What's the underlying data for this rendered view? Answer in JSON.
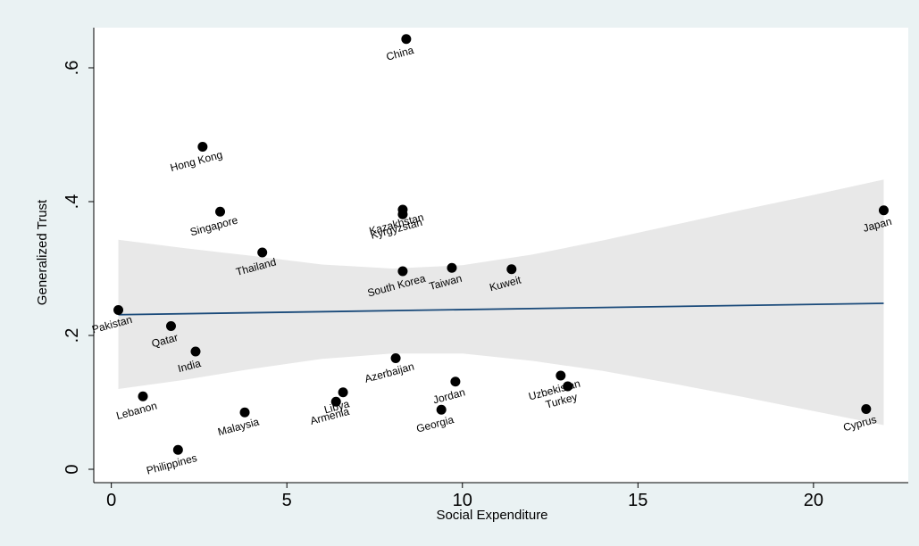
{
  "chart_data": {
    "type": "scatter",
    "xlabel": "Social Expenditure",
    "ylabel": "Generalized Trust",
    "xlim": [
      -0.5,
      22.7
    ],
    "ylim": [
      -0.02,
      0.66
    ],
    "x_ticks": [
      0,
      5,
      10,
      15,
      20
    ],
    "x_tick_labels": [
      "0",
      "5",
      "10",
      "15",
      "20"
    ],
    "y_ticks": [
      0,
      0.2,
      0.4,
      0.6
    ],
    "y_tick_labels": [
      "0",
      ".2",
      ".4",
      ".6"
    ],
    "grid": false,
    "points": [
      {
        "label": "China",
        "x": 8.4,
        "y": 0.643
      },
      {
        "label": "Hong Kong",
        "x": 2.6,
        "y": 0.482
      },
      {
        "label": "Singapore",
        "x": 3.1,
        "y": 0.385
      },
      {
        "label": "Thailand",
        "x": 4.3,
        "y": 0.324
      },
      {
        "label": "Pakistan",
        "x": 0.2,
        "y": 0.238
      },
      {
        "label": "Qatar",
        "x": 1.7,
        "y": 0.214
      },
      {
        "label": "India",
        "x": 2.4,
        "y": 0.176
      },
      {
        "label": "Lebanon",
        "x": 0.9,
        "y": 0.109
      },
      {
        "label": "Malaysia",
        "x": 3.8,
        "y": 0.085
      },
      {
        "label": "Philippines",
        "x": 1.9,
        "y": 0.029
      },
      {
        "label": "Kazakhstan",
        "x": 8.3,
        "y": 0.388
      },
      {
        "label": "Kyrgyzstan",
        "x": 8.3,
        "y": 0.381
      },
      {
        "label": "South Korea",
        "x": 8.3,
        "y": 0.296
      },
      {
        "label": "Taiwan",
        "x": 9.7,
        "y": 0.301
      },
      {
        "label": "Kuweit",
        "x": 11.4,
        "y": 0.299
      },
      {
        "label": "Azerbaijan",
        "x": 8.1,
        "y": 0.166
      },
      {
        "label": "Libya",
        "x": 6.6,
        "y": 0.115
      },
      {
        "label": "Armenia",
        "x": 6.4,
        "y": 0.101
      },
      {
        "label": "Jordan",
        "x": 9.8,
        "y": 0.131
      },
      {
        "label": "Georgia",
        "x": 9.4,
        "y": 0.089
      },
      {
        "label": "Uzbekistan",
        "x": 12.8,
        "y": 0.14
      },
      {
        "label": "Turkey",
        "x": 13.0,
        "y": 0.124
      },
      {
        "label": "Japan",
        "x": 22.0,
        "y": 0.387
      },
      {
        "label": "Cyprus",
        "x": 21.5,
        "y": 0.09
      }
    ],
    "fit_line": {
      "x": [
        0.2,
        22.0
      ],
      "y": [
        0.231,
        0.248
      ]
    },
    "confidence_band": {
      "x": [
        0.2,
        2,
        4,
        6,
        8,
        10,
        12,
        14,
        16,
        18,
        20,
        22.0
      ],
      "upper": [
        0.343,
        0.331,
        0.319,
        0.306,
        0.3,
        0.305,
        0.321,
        0.342,
        0.365,
        0.388,
        0.41,
        0.433
      ],
      "lower": [
        0.12,
        0.133,
        0.15,
        0.165,
        0.173,
        0.173,
        0.162,
        0.147,
        0.128,
        0.108,
        0.087,
        0.066
      ]
    },
    "colors": {
      "background": "#eaf2f3",
      "plot_background": "#ffffff",
      "band": "#e8e8e8",
      "fit_line": "#1a4a7a",
      "points": "#000000"
    }
  }
}
